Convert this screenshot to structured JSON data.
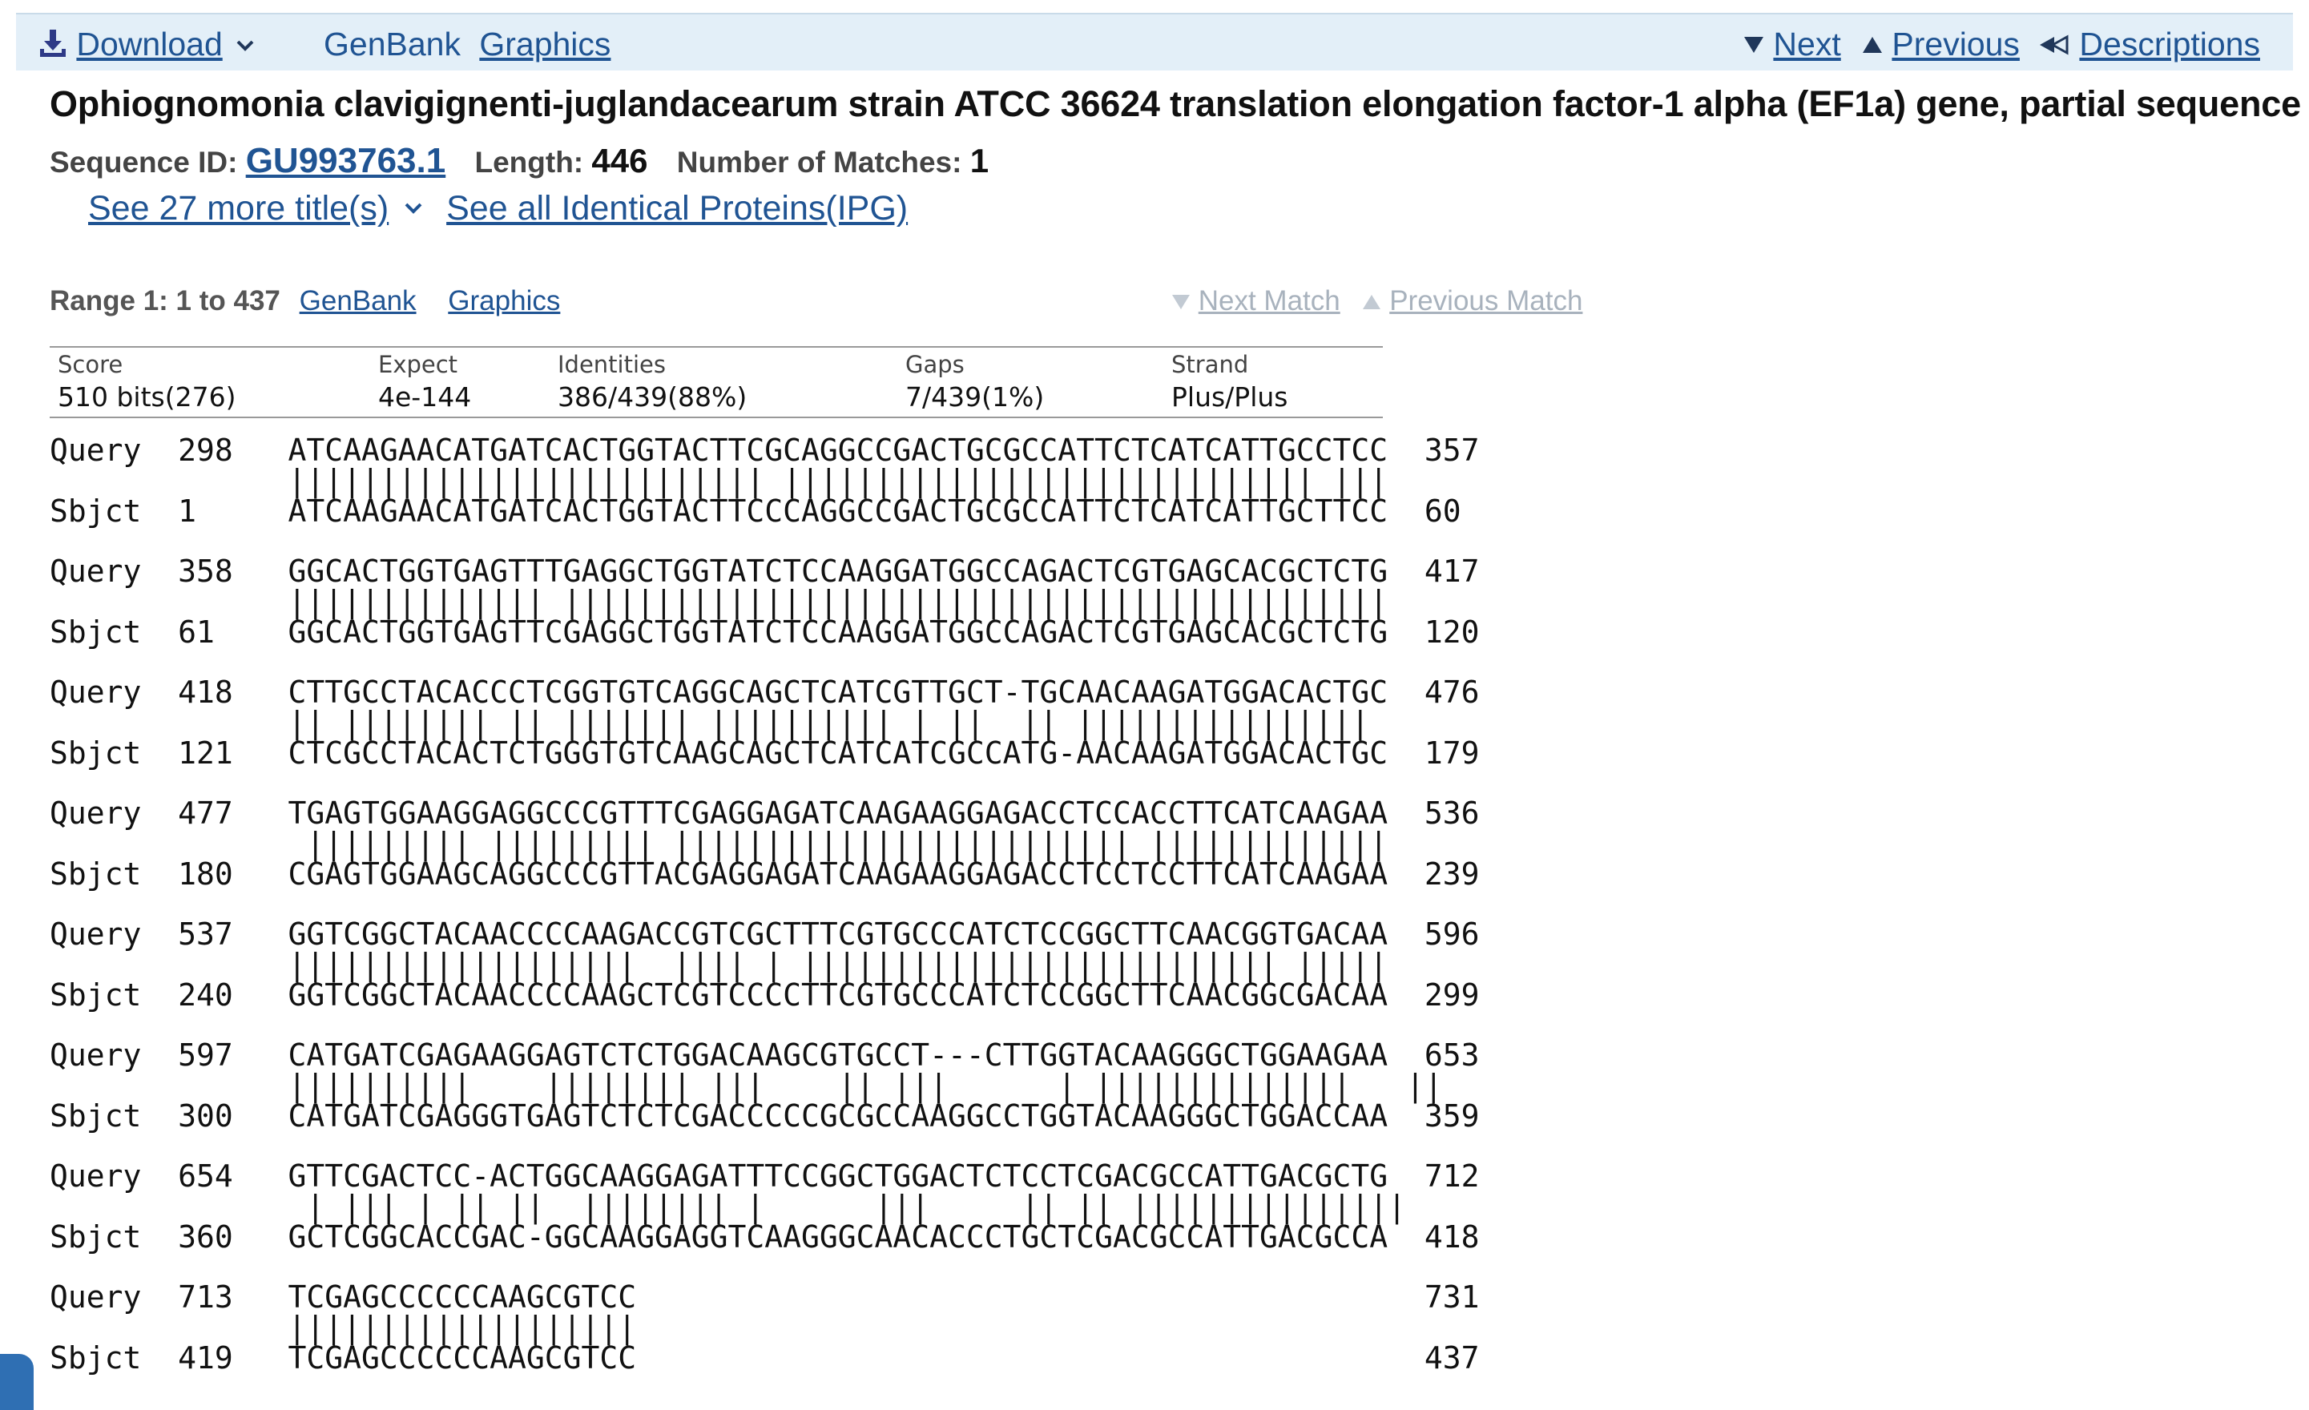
{
  "toolbar": {
    "download": "Download",
    "genbank": "GenBank",
    "graphics": "Graphics",
    "next": "Next",
    "previous": "Previous",
    "descriptions": "Descriptions",
    "icons": {
      "download": "download-icon",
      "chevron": "chevron-down-icon",
      "next": "triangle-down-icon",
      "previous": "triangle-up-icon",
      "descriptions": "back-arrow-icon"
    }
  },
  "title": "Ophiognomonia clavigignenti-juglandacearum strain ATCC 36624 translation elongation factor-1 alpha (EF1a) gene, partial sequence",
  "sequence": {
    "id_label": "Sequence ID:",
    "id_value": "GU993763.1",
    "length_label": "Length:",
    "length_value": "446",
    "matches_label": "Number of Matches:",
    "matches_value": "1"
  },
  "links": {
    "more_titles": "See 27 more title(s)",
    "identical_proteins": "See all Identical Proteins(IPG)"
  },
  "range": {
    "label": "Range 1: 1 to 437",
    "genbank": "GenBank",
    "graphics": "Graphics",
    "next_match": "Next Match",
    "previous_match": "Previous Match"
  },
  "stats": [
    {
      "header": "Score",
      "value": "510 bits(276)"
    },
    {
      "header": "Expect",
      "value": "4e-144"
    },
    {
      "header": "Identities",
      "value": "386/439(88%)"
    },
    {
      "header": "Gaps",
      "value": "7/439(1%)"
    },
    {
      "header": "Strand",
      "value": "Plus/Plus"
    }
  ],
  "alignment": [
    {
      "q_start": "298",
      "query": "ATCAAGAACATGATCACTGGTACTTCGCAGGCCGACTGCGCCATTCTCATCATTGCCTCC",
      "q_end": "357",
      "match": "|||||||||||||||||||||||||| ||||||||||||||||||||||||||||| |||",
      "s_start": "1",
      "sbjct": "ATCAAGAACATGATCACTGGTACTTCCCAGGCCGACTGCGCCATTCTCATCATTGCTTCC",
      "s_end": "60"
    },
    {
      "q_start": "358",
      "query": "GGCACTGGTGAGTTTGAGGCTGGTATCTCCAAGGATGGCCAGACTCGTGAGCACGCTCTG",
      "q_end": "417",
      "match": "|||||||||||||| |||||||||||||||||||||||||||||||||||||||||||||",
      "s_start": "61",
      "sbjct": "GGCACTGGTGAGTTCGAGGCTGGTATCTCCAAGGATGGCCAGACTCGTGAGCACGCTCTG",
      "s_end": "120"
    },
    {
      "q_start": "418",
      "query": "CTTGCCTACACCCTCGGTGTCAGGCAGCTCATCGTTGCT-TGCAACAAGATGGACACTGC",
      "q_end": "476",
      "match": "|| |||||||| || ||||||| |||||||||| | ||  || ||||||||||||||||",
      "s_start": "121",
      "sbjct": "CTCGCCTACACTCTGGGTGTCAAGCAGCTCATCATCGCCATG-AACAAGATGGACACTGC",
      "s_end": "179"
    },
    {
      "q_start": "477",
      "query": "TGAGTGGAAGGAGGCCCGTTTCGAGGAGATCAAGAAGGAGACCTCCACCTTCATCAAGAA",
      "q_end": "536",
      "match": " ||||||||| ||||||||| ||||||||||||||||||||||||| |||||||||||||",
      "s_start": "180",
      "sbjct": "CGAGTGGAAGCAGGCCCGTTACGAGGAGATCAAGAAGGAGACCTCCTCCTTCATCAAGAA",
      "s_end": "239"
    },
    {
      "q_start": "537",
      "query": "GGTCGGCTACAACCCCAAGACCGTCGCTTTCGTGCCCATCTCCGGCTTCAACGGTGACAA",
      "q_end": "596",
      "match": "|||||||||||||||||||  |||| | |||||||||||||||||||||||||| |||||",
      "s_start": "240",
      "sbjct": "GGTCGGCTACAACCCCAAGCTCGTCCCCTTCGTGCCCATCTCCGGCTTCAACGGCGACAA",
      "s_end": "299"
    },
    {
      "q_start": "597",
      "query": "CATGATCGAGAAGGAGTCTCTGGACAAGCGTGCCT---CTTGGTACAAGGGCTGGAAGAA",
      "q_end": "653",
      "match": "||||||||||    |||||||| |||    || |||      | ||||||||||||||   ||",
      "s_start": "300",
      "sbjct": "CATGATCGAGGGTGAGTCTCTCGACCCCCGCGCCAAGGCCTGGTACAAGGGCTGGACCAA",
      "s_end": "359"
    },
    {
      "q_start": "654",
      "query": "GTTCGACTCC-ACTGGCAAGGAGATTTCCGGCTGGACTCTCCTCGACGCCATTGACGCTG",
      "q_end": "712",
      "match": " | ||| | || ||  |||||||| |      |||     || || |||||||||||||||",
      "s_start": "360",
      "sbjct": "GCTCGGCACCGAC-GGCAAGGAGGTCAAGGGCAACACCCTGCTCGACGCCATTGACGCCA",
      "s_end": "418"
    },
    {
      "q_start": "713",
      "query": "TCGAGCCCCCCAAGCGTCC",
      "q_end": "731",
      "match": "|||||||||||||||||||",
      "s_start": "419",
      "sbjct": "TCGAGCCCCCCAAGCGTCC",
      "s_end": "437"
    }
  ]
}
